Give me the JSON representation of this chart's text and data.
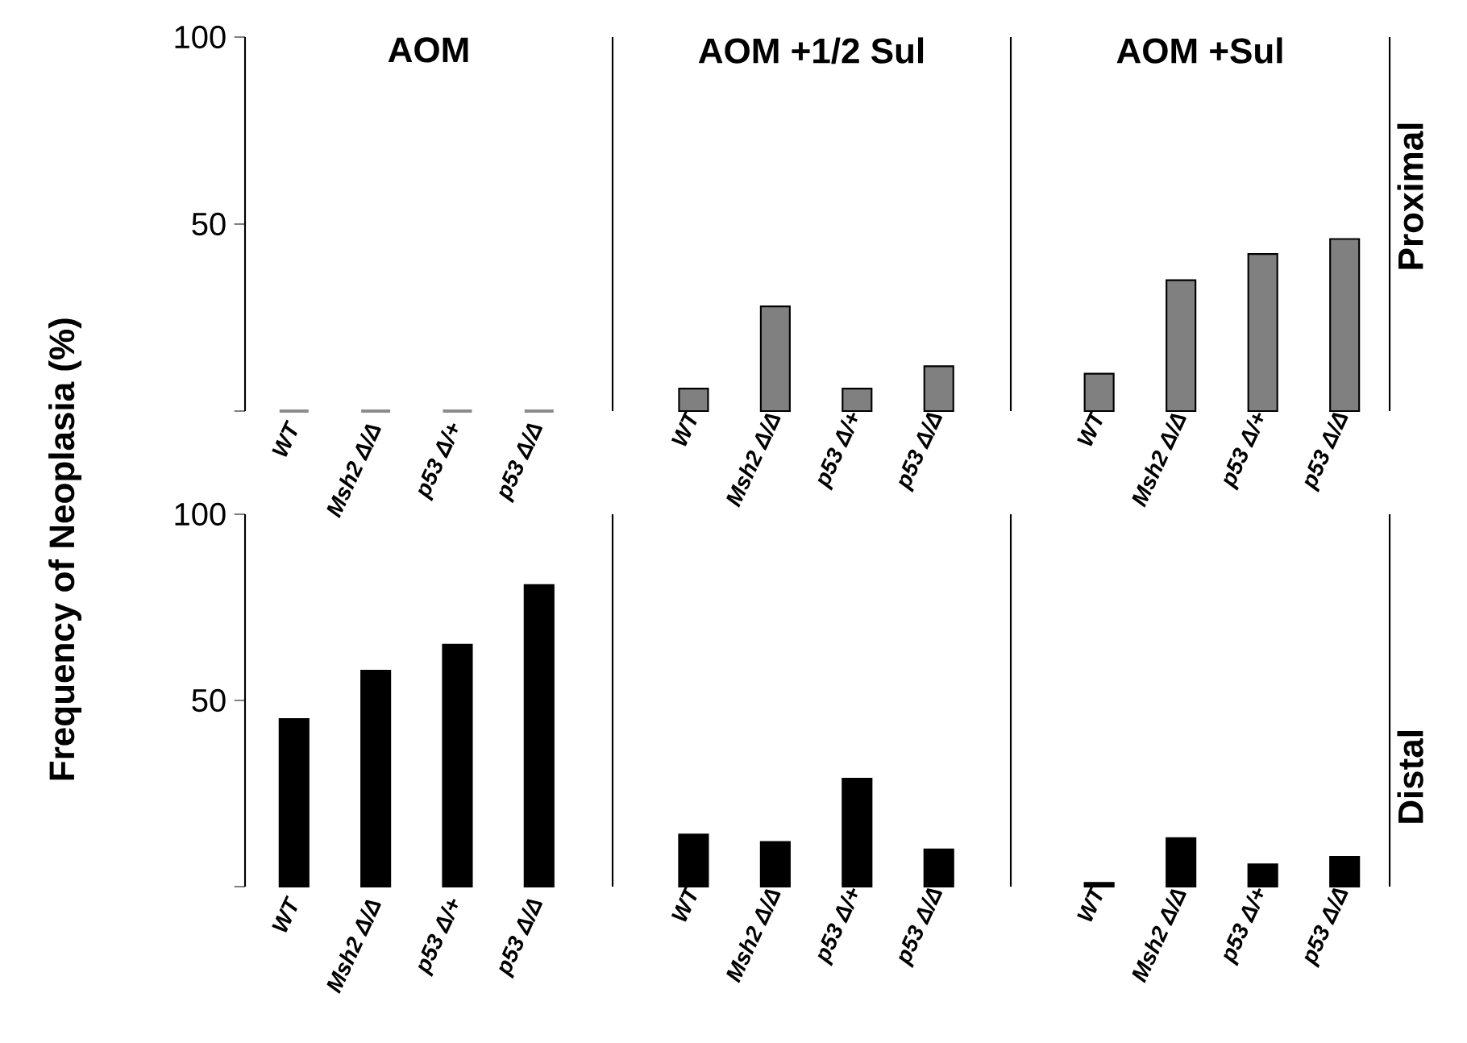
{
  "chart_data": [
    {
      "type": "bar",
      "title": "AOM",
      "ylabel": "Frequency of Neoplasia (%)",
      "categories": [
        "WT",
        "Msh2 Δ/Δ",
        "p53 Δ/+",
        "p53 Δ/Δ"
      ],
      "values": [
        0,
        0,
        0,
        0
      ],
      "color": "#8c8c8c",
      "ylim": [
        0,
        100
      ],
      "yticks": [
        {
          "value": 0,
          "label": null
        },
        50,
        100
      ]
    },
    {
      "type": "bar",
      "title": "AOM +1/2 Sul",
      "categories": [
        "WT",
        "Msh2 Δ/Δ",
        "p53 Δ/+",
        "p53 Δ/Δ"
      ],
      "values": [
        6,
        28,
        6,
        12
      ],
      "color": "#808080",
      "ylim": [
        0,
        100
      ],
      "tick_labels": "x"
    },
    {
      "type": "bar",
      "title": "AOM +Sul",
      "categories": [
        "WT",
        "Msh2 Δ/Δ",
        "p53 Δ/+",
        "p53 Δ/Δ"
      ],
      "values": [
        10,
        35,
        42,
        46
      ],
      "color": "#808080",
      "ylim": [
        0,
        100
      ],
      "tick_labels": "x",
      "annotations": [
        "Proximal"
      ]
    },
    {
      "type": "bar",
      "categories": [
        "WT",
        "Msh2 Δ/Δ",
        "p53 Δ/+",
        "p53 Δ/Δ"
      ],
      "values": [
        45,
        58,
        65,
        81
      ],
      "color": "#000000",
      "ylim": [
        0,
        100
      ],
      "yticks": [
        {
          "value": 0,
          "label": null
        },
        50,
        100
      ]
    },
    {
      "type": "bar",
      "categories": [
        "WT",
        "Msh2 Δ/Δ",
        "p53 Δ/+",
        "p53 Δ/Δ"
      ],
      "values": [
        14,
        12,
        29,
        10
      ],
      "color": "#000000",
      "ylim": [
        0,
        100
      ],
      "tick_labels": "x"
    },
    {
      "type": "bar",
      "categories": [
        "WT",
        "Msh2 Δ/Δ",
        "p53 Δ/+",
        "p53 Δ/Δ"
      ],
      "values": [
        1,
        13,
        6,
        8
      ],
      "color": "#000000",
      "ylim": [
        0,
        100
      ],
      "tick_labels": "x",
      "annotations": [
        "Distal"
      ]
    }
  ]
}
